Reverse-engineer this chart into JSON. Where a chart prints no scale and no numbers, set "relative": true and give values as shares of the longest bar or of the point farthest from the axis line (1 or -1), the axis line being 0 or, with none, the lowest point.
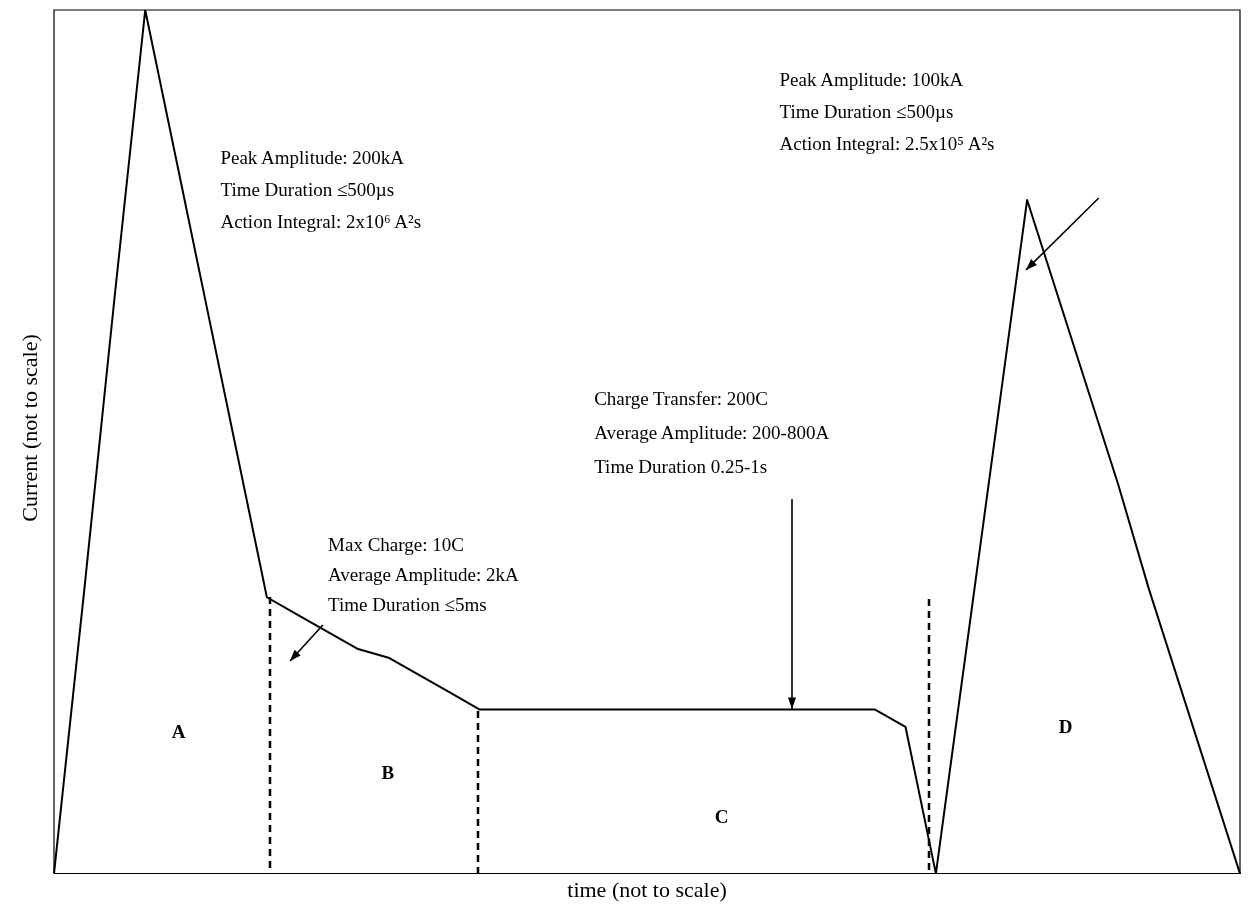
{
  "chart_data": {
    "type": "line",
    "relative": true,
    "xlabel": "time (not to scale)",
    "ylabel": "Current (not to scale)",
    "categories": [
      null,
      null,
      null,
      null,
      null,
      null,
      null,
      null,
      null,
      null,
      null,
      null,
      null,
      null,
      null,
      null,
      null,
      null,
      null,
      null,
      null,
      null,
      null,
      null,
      null,
      null,
      null,
      null,
      null,
      null,
      null,
      null,
      null,
      null,
      null,
      null,
      null,
      null,
      null,
      null
    ],
    "values": [
      0,
      0.33,
      0.67,
      1,
      0.83,
      0.66,
      0.49,
      0.32,
      0.3,
      0.28,
      0.26,
      0.25,
      0.23,
      0.21,
      0.19,
      0.19,
      0.19,
      0.19,
      0.19,
      0.19,
      0.19,
      0.19,
      0.19,
      0.19,
      0.19,
      0.19,
      0.19,
      0.19,
      0.17,
      0,
      0.26,
      0.52,
      0.78,
      0.67,
      0.56,
      0.45,
      0.33,
      0.22,
      0.11,
      0
    ],
    "color": "#000000",
    "marker": "none",
    "line_style": "solid",
    "grid": false,
    "legend": false,
    "annotations": [
      "Peak Amplitude: 200kA",
      "Time Duration ≤500µs",
      "Action Integral: 2x10⁶ A²s",
      "Max Charge: 10C",
      "Average Amplitude: 2kA",
      "Time Duration ≤5ms",
      "Charge Transfer: 200C",
      "Average Amplitude: 200-800A",
      "Time Duration 0.25-1s",
      "Peak Amplitude: 100kA",
      "Time Duration ≤500µs",
      "Action Integral: 2.5x10⁵ A²s",
      "A",
      "B",
      "C",
      "D"
    ]
  }
}
